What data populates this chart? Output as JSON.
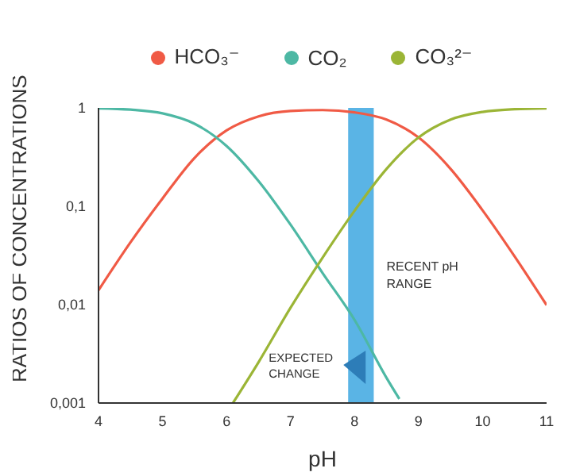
{
  "chart_data": {
    "type": "line",
    "xlabel": "pH",
    "ylabel": "RATIOS OF CONCENTRATIONS",
    "log": "y",
    "legend": "top",
    "marker": "none",
    "line_style": "solid",
    "xlim": [
      4,
      11
    ],
    "xticks": [
      4,
      5,
      6,
      7,
      8,
      9,
      10,
      11
    ],
    "ylim": [
      0.001,
      1
    ],
    "yticks": [
      {
        "value": 0.001,
        "label": "0,001"
      },
      {
        "value": 0.01,
        "label": "0,01"
      },
      {
        "value": 0.1,
        "label": "0,1"
      },
      1
    ],
    "series": [
      {
        "name": "HCO₃⁻",
        "color": "#f05a45",
        "x": [
          4,
          4.5,
          5,
          5.5,
          6,
          6.5,
          7,
          7.5,
          8,
          8.5,
          9,
          9.5,
          10,
          10.5,
          11
        ],
        "values": [
          0.014,
          0.043,
          0.12,
          0.31,
          0.59,
          0.82,
          0.93,
          0.95,
          0.9,
          0.76,
          0.5,
          0.24,
          0.091,
          0.031,
          0.0099
        ]
      },
      {
        "name": "CO₂",
        "color": "#4db8a4",
        "x": [
          4,
          4.5,
          5,
          5.5,
          6,
          6.5,
          7,
          7.5,
          8,
          8.5,
          8.7
        ],
        "values": [
          0.99,
          0.96,
          0.88,
          0.69,
          0.41,
          0.18,
          0.065,
          0.021,
          0.007,
          0.0018,
          0.0011
        ]
      },
      {
        "name": "CO₃²⁻",
        "color": "#9bb536",
        "x": [
          6.1,
          6.5,
          7,
          7.5,
          8,
          8.5,
          9,
          9.5,
          10,
          10.5,
          11
        ],
        "values": [
          0.001,
          0.0026,
          0.0093,
          0.03,
          0.09,
          0.24,
          0.5,
          0.76,
          0.91,
          0.97,
          0.99
        ]
      }
    ],
    "bands": [
      {
        "axis": "x",
        "from": 7.9,
        "to": 8.3,
        "label": "RECENT pH RANGE",
        "color": "#5ab4e5"
      }
    ],
    "annotations": [
      "EXPECTED CHANGE"
    ]
  }
}
